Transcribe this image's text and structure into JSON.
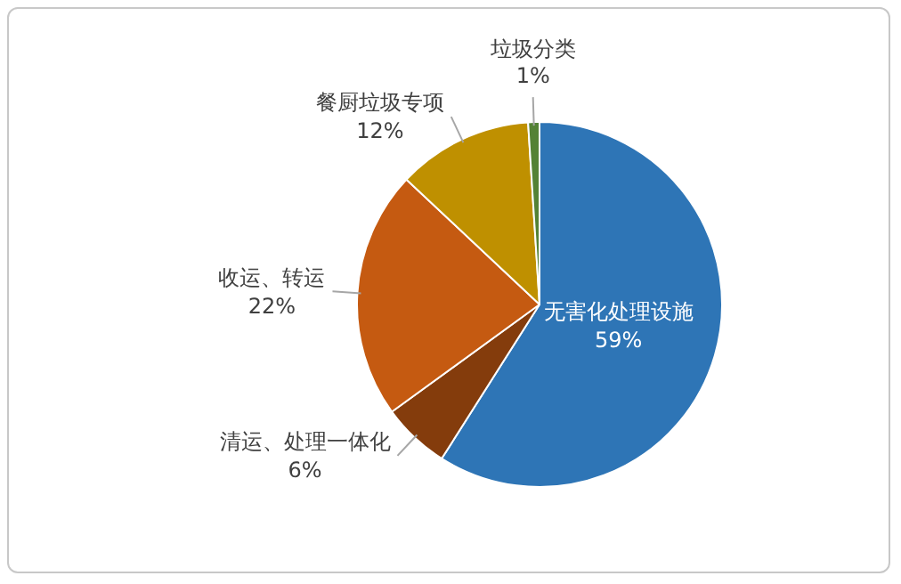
{
  "chart_data": {
    "type": "pie",
    "categories": [
      "无害化处理设施",
      "清运、处理一体化",
      "收运、转运",
      "餐厨垃圾专项",
      "垃圾分类"
    ],
    "values": [
      59,
      6,
      22,
      12,
      1
    ],
    "value_labels": [
      "59%",
      "6%",
      "22%",
      "12%",
      "1%"
    ],
    "colors": [
      "#2e75b6",
      "#843c0c",
      "#c55a11",
      "#bf9000",
      "#548235"
    ],
    "legend": false
  }
}
